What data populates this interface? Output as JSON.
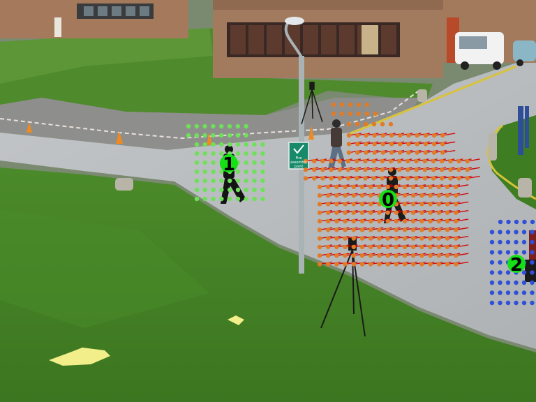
{
  "sign": {
    "text_line1": "Fire",
    "text_line2": "assembly",
    "text_line3": "point"
  },
  "tracks": [
    {
      "id": "0",
      "color": "#e07b28",
      "vector_color": "#d40000"
    },
    {
      "id": "1",
      "color": "#6fe05a",
      "vector_color": null
    },
    {
      "id": "2",
      "color": "#2f4fd8",
      "vector_color": null
    }
  ],
  "colors": {
    "grass": "#3f7d22",
    "grass_light": "#5a9a30",
    "road": "#b9bcbf",
    "brick": "#9a6e52",
    "label_fill": "#16e016"
  }
}
